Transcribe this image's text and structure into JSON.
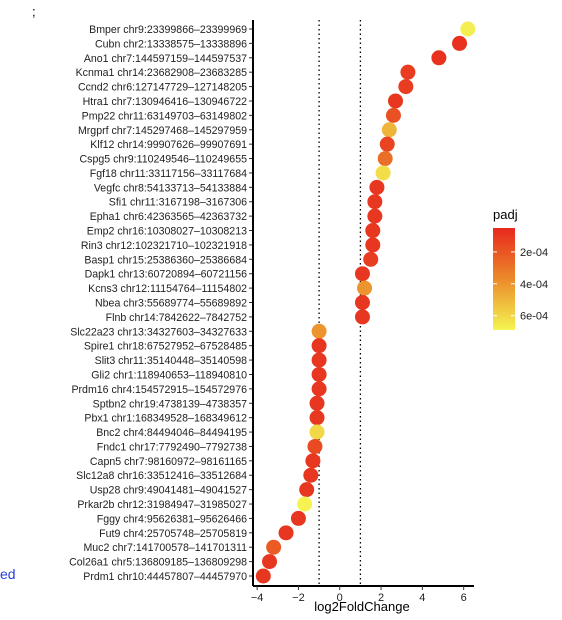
{
  "fragments": {
    "top_left_mark": ";",
    "bottom_left_text": "ed"
  },
  "chart_data": {
    "type": "scatter",
    "title": "",
    "xlabel": "log2FoldChange",
    "ylabel": "",
    "xlim": [
      -4.2,
      6.5
    ],
    "x_ticks": [
      -4,
      -2,
      0,
      2,
      4,
      6
    ],
    "reference_lines_x": [
      -1,
      1
    ],
    "grid": false,
    "legend": {
      "title": "padj",
      "placement": "right",
      "ticks": [
        {
          "label": "2e-04",
          "value": 0.0002
        },
        {
          "label": "4e-04",
          "value": 0.0004
        },
        {
          "label": "6e-04",
          "value": 0.0006
        }
      ],
      "range": [
        5e-05,
        0.00069
      ],
      "color_low": "#e8281e",
      "color_high": "#f5f552"
    },
    "points": [
      {
        "label": "Bmper chr9:23399866–23399969",
        "x": 6.2,
        "padj": 0.00067
      },
      {
        "label": "Cubn chr2:13338575–13338896",
        "x": 5.8,
        "padj": 8e-05
      },
      {
        "label": "Ano1 chr7:144597159–144597537",
        "x": 4.8,
        "padj": 8e-05
      },
      {
        "label": "Kcnma1 chr14:23682908–23683285",
        "x": 3.3,
        "padj": 0.00012
      },
      {
        "label": "Ccnd2 chr6:127147729–127148205",
        "x": 3.2,
        "padj": 0.00012
      },
      {
        "label": "Htra1 chr7:130946416–130946722",
        "x": 2.7,
        "padj": 0.0001
      },
      {
        "label": "Pmp22 chr11:63149703–63149802",
        "x": 2.6,
        "padj": 0.00018
      },
      {
        "label": "Mrgprf chr7:145297468–145297959",
        "x": 2.4,
        "padj": 0.0005
      },
      {
        "label": "Klf12 chr14:99907626–99907691",
        "x": 2.3,
        "padj": 0.00014
      },
      {
        "label": "Cspg5 chr9:110249546–110249655",
        "x": 2.2,
        "padj": 0.00028
      },
      {
        "label": "Fgf18 chr11:33117156–33117684",
        "x": 2.1,
        "padj": 0.00062
      },
      {
        "label": "Vegfc chr8:54133713–54133884",
        "x": 1.8,
        "padj": 0.0001
      },
      {
        "label": "Sfi1 chr11:3167198–3167306",
        "x": 1.7,
        "padj": 0.0001
      },
      {
        "label": "Epha1 chr6:42363565–42363732",
        "x": 1.7,
        "padj": 0.0001
      },
      {
        "label": "Emp2 chr16:10308027–10308213",
        "x": 1.6,
        "padj": 0.0001
      },
      {
        "label": "Rin3 chr12:102321710–102321918",
        "x": 1.6,
        "padj": 0.0001
      },
      {
        "label": "Basp1 chr15:25386360–25386684",
        "x": 1.5,
        "padj": 0.00012
      },
      {
        "label": "Dapk1 chr13:60720894–60721156",
        "x": 1.1,
        "padj": 0.0001
      },
      {
        "label": "Kcns3 chr12:11154764–11154802",
        "x": 1.2,
        "padj": 0.0004
      },
      {
        "label": "Nbea chr3:55689774–55689892",
        "x": 1.1,
        "padj": 0.0001
      },
      {
        "label": "Flnb chr14:7842622–7842752",
        "x": 1.1,
        "padj": 0.0001
      },
      {
        "label": "Slc22a23 chr13:34327603–34327633",
        "x": -1.0,
        "padj": 0.0004
      },
      {
        "label": "Spire1 chr18:67527952–67528485",
        "x": -1.0,
        "padj": 0.0001
      },
      {
        "label": "Slit3 chr11:35140448–35140598",
        "x": -1.0,
        "padj": 0.0001
      },
      {
        "label": "Gli2 chr1:118940653–118940810",
        "x": -1.0,
        "padj": 0.0001
      },
      {
        "label": "Prdm16 chr4:154572915–154572976",
        "x": -1.0,
        "padj": 0.0001
      },
      {
        "label": "Sptbn2 chr19:4738139–4738357",
        "x": -1.1,
        "padj": 0.0001
      },
      {
        "label": "Pbx1 chr1:168349528–168349612",
        "x": -1.1,
        "padj": 0.0001
      },
      {
        "label": "Bnc2 chr4:84494046–84494195",
        "x": -1.1,
        "padj": 0.0006
      },
      {
        "label": "Fndc1 chr17:7792490–7792738",
        "x": -1.2,
        "padj": 0.00016
      },
      {
        "label": "Capn5 chr7:98160972–98161165",
        "x": -1.3,
        "padj": 0.0001
      },
      {
        "label": "Slc12a8 chr16:33512416–33512684",
        "x": -1.4,
        "padj": 0.0001
      },
      {
        "label": "Usp28 chr9:49041481–49041527",
        "x": -1.6,
        "padj": 0.0001
      },
      {
        "label": "Prkar2b chr12:31984947–31985027",
        "x": -1.7,
        "padj": 0.00068
      },
      {
        "label": "Fggy chr4:95626381–95626466",
        "x": -2.0,
        "padj": 0.0001
      },
      {
        "label": "Fut9 chr4:25705748–25705819",
        "x": -2.6,
        "padj": 0.0001
      },
      {
        "label": "Muc2 chr7:141700578–141701311",
        "x": -3.2,
        "padj": 0.00022
      },
      {
        "label": "Col26a1 chr5:136809185–136809298",
        "x": -3.4,
        "padj": 0.0001
      },
      {
        "label": "Prdm1 chr10:44457807–44457970",
        "x": -3.7,
        "padj": 0.0001
      }
    ]
  }
}
